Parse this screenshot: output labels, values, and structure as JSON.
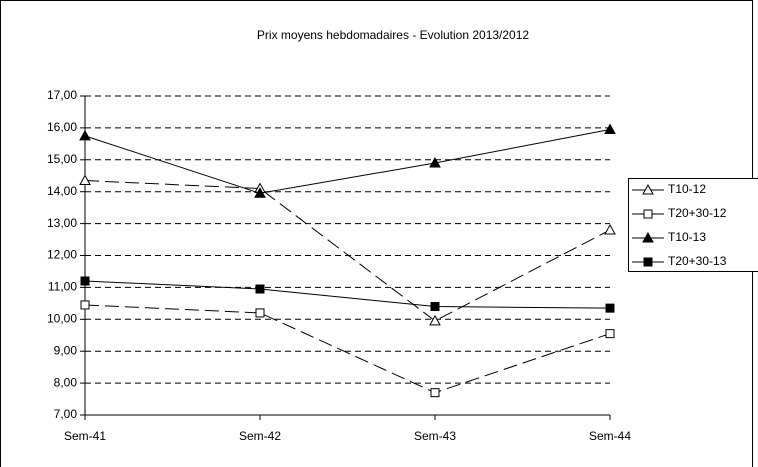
{
  "chart_data": {
    "type": "line",
    "title": "Prix moyens hebdomadaires - Evolution  2013/2012",
    "categories": [
      "Sem-41",
      "Sem-42",
      "Sem-43",
      "Sem-44"
    ],
    "series": [
      {
        "name": "T10-12",
        "color": "#000000",
        "marker": "triangle",
        "filled": false,
        "dashed": true,
        "values": [
          14.35,
          14.1,
          9.95,
          12.8
        ]
      },
      {
        "name": "T20+30-12",
        "color": "#000000",
        "marker": "square",
        "filled": false,
        "dashed": true,
        "values": [
          10.45,
          10.2,
          7.7,
          9.55
        ]
      },
      {
        "name": "T10-13",
        "color": "#000000",
        "marker": "triangle",
        "filled": true,
        "dashed": false,
        "values": [
          15.75,
          13.95,
          14.9,
          15.95
        ]
      },
      {
        "name": "T20+30-13",
        "color": "#000000",
        "marker": "square",
        "filled": true,
        "dashed": false,
        "values": [
          11.2,
          10.95,
          10.4,
          10.35
        ]
      }
    ],
    "ylim": [
      7,
      17
    ],
    "yticks": [
      {
        "value": 7,
        "label": "7,00"
      },
      {
        "value": 8,
        "label": "8,00"
      },
      {
        "value": 9,
        "label": "9,00"
      },
      {
        "value": 10,
        "label": "10,00"
      },
      {
        "value": 11,
        "label": "11,00"
      },
      {
        "value": 12,
        "label": "12,00"
      },
      {
        "value": 13,
        "label": "13,00"
      },
      {
        "value": 14,
        "label": "14,00"
      },
      {
        "value": 15,
        "label": "15,00"
      },
      {
        "value": 16,
        "label": "16,00"
      },
      {
        "value": 17,
        "label": "17,00"
      }
    ],
    "grid": true,
    "legend": "right"
  }
}
